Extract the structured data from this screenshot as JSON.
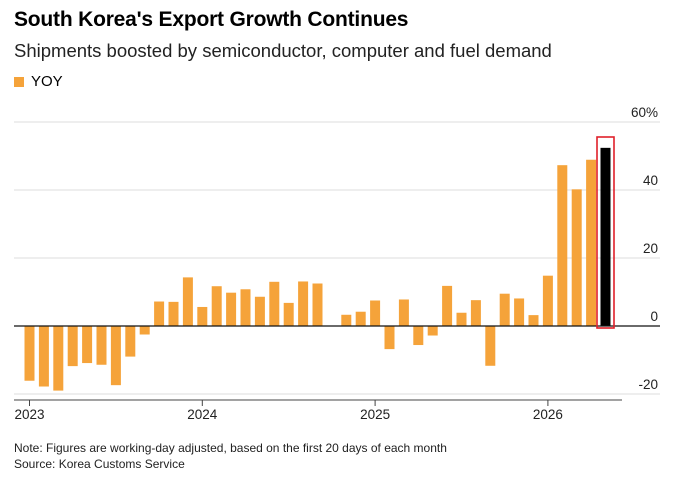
{
  "title": "South Korea's Export Growth Continues",
  "subtitle": "Shipments boosted by semiconductor, computer and fuel demand",
  "note": "Note: Figures are working-day adjusted, based on the first 20 days of each month",
  "source": "Source: Korea Customs Service",
  "colors": {
    "bar": "#F5A33A",
    "highlight_bar": "#000000",
    "highlight_box": "#E0202A"
  },
  "chart_data": {
    "type": "bar",
    "series": [
      {
        "name": "YOY",
        "color": "#F5A33A"
      }
    ],
    "x": [
      "2023-01",
      "2023-02",
      "2023-03",
      "2023-04",
      "2023-05",
      "2023-06",
      "2023-07",
      "2023-08",
      "2023-09",
      "2023-10",
      "2023-11",
      "2023-12",
      "2024-01",
      "2024-02",
      "2024-03",
      "2024-04",
      "2024-05",
      "2024-06",
      "2024-07",
      "2024-08",
      "2024-09",
      "2024-10",
      "2024-11",
      "2024-12",
      "2025-01",
      "2025-02",
      "2025-03",
      "2025-04",
      "2025-05",
      "2025-06",
      "2025-07",
      "2025-08",
      "2025-09",
      "2025-10",
      "2025-11",
      "2025-12",
      "2026-01",
      "2026-02",
      "2026-03",
      "2026-04",
      "2026-05"
    ],
    "values": [
      -16.1,
      -17.8,
      -19.0,
      -11.8,
      -10.9,
      -11.4,
      -17.4,
      -9.0,
      -2.5,
      7.2,
      7.1,
      14.3,
      5.6,
      11.7,
      9.8,
      10.8,
      8.6,
      13.0,
      6.8,
      13.1,
      12.5,
      null,
      3.3,
      4.2,
      7.5,
      -6.8,
      7.8,
      -5.6,
      -2.8,
      11.8,
      3.9,
      7.6,
      -11.7,
      9.5,
      8.1,
      3.2,
      14.8,
      47.3,
      40.2,
      48.9,
      52.4
    ],
    "highlight_index": 40,
    "xtick_labels": [
      "2023",
      "2024",
      "2025",
      "2026"
    ],
    "ytick_labels": [
      "-20",
      "0",
      "20",
      "40",
      "60%"
    ],
    "yticks": [
      -20,
      0,
      20,
      40,
      60
    ],
    "ylim": [
      -23,
      62
    ],
    "grid": true,
    "legend": "top-left"
  }
}
